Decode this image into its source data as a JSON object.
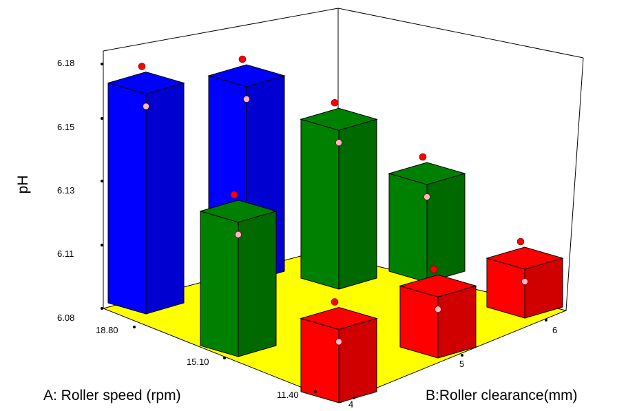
{
  "chart_data": {
    "type": "bar3d",
    "zlabel": "pH",
    "xlabel": "A: Roller speed (rpm)",
    "ylabel": "B:Roller clearance(mm)",
    "z_ticks": [
      "6.18",
      "6.15",
      "6.13",
      "6.11",
      "6.08"
    ],
    "x_ticks": [
      "18.80",
      "15.10",
      "11.40"
    ],
    "y_ticks": [
      "4",
      "5",
      "6"
    ],
    "zlim": [
      6.08,
      6.18
    ],
    "floor_color": "#ffff00",
    "bars": [
      {
        "roller_speed": 18.8,
        "roller_clearance": 4,
        "pH": 6.17,
        "color": "#0000ff"
      },
      {
        "roller_speed": 18.8,
        "roller_clearance": 5,
        "pH": 6.16,
        "color": "#0000ff"
      },
      {
        "roller_speed": 15.1,
        "roller_clearance": 4,
        "pH": 6.135,
        "color": "#008000"
      },
      {
        "roller_speed": 15.1,
        "roller_clearance": 5,
        "pH": 6.145,
        "color": "#008000"
      },
      {
        "roller_speed": 15.1,
        "roller_clearance": 6,
        "pH": 6.12,
        "color": "#008000"
      },
      {
        "roller_speed": 11.4,
        "roller_clearance": 4,
        "pH": 6.11,
        "color": "#ff0000"
      },
      {
        "roller_speed": 11.4,
        "roller_clearance": 5,
        "pH": 6.105,
        "color": "#ff0000"
      },
      {
        "roller_speed": 11.4,
        "roller_clearance": 6,
        "pH": 6.1,
        "color": "#ff0000"
      }
    ],
    "points_above_color": "#ff0000",
    "points_below_color": "#ffb6c1"
  }
}
